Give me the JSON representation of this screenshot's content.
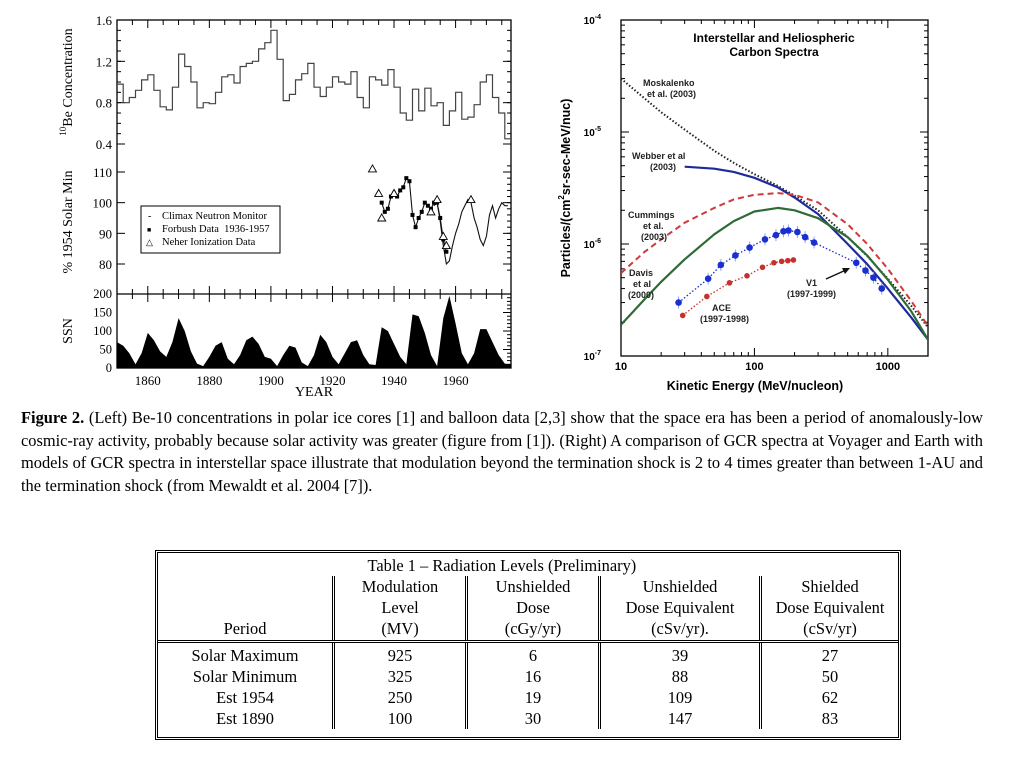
{
  "left_figure": {
    "chart_data": [
      {
        "type": "line",
        "panel": "top",
        "ylabel": "10Be Concentration",
        "ylabel_superscript": "10",
        "ylabel_main": "Be Concentration",
        "ylim": [
          0.3,
          1.6
        ],
        "yticks": [
          "1.6",
          "1.2",
          "0.8",
          "0.4"
        ],
        "x": [
          1850,
          1852,
          1854,
          1856,
          1858,
          1860,
          1862,
          1864,
          1866,
          1868,
          1870,
          1872,
          1874,
          1876,
          1878,
          1880,
          1882,
          1884,
          1886,
          1888,
          1890,
          1892,
          1894,
          1896,
          1898,
          1900,
          1902,
          1904,
          1906,
          1908,
          1910,
          1912,
          1914,
          1916,
          1918,
          1920,
          1922,
          1924,
          1926,
          1928,
          1930,
          1932,
          1934,
          1936,
          1938,
          1940,
          1942,
          1944,
          1946,
          1948,
          1950,
          1952,
          1954,
          1956,
          1958,
          1960,
          1962,
          1964,
          1966,
          1968,
          1970,
          1972,
          1974,
          1976
        ],
        "values": [
          0.98,
          0.8,
          0.85,
          0.92,
          1.02,
          1.07,
          0.92,
          0.76,
          0.73,
          0.95,
          1.27,
          1.15,
          1.0,
          0.75,
          0.8,
          0.79,
          0.9,
          1.05,
          1.07,
          0.99,
          1.15,
          1.18,
          1.2,
          1.32,
          1.38,
          1.5,
          1.22,
          0.82,
          0.88,
          1.02,
          1.08,
          1.18,
          0.95,
          0.86,
          0.95,
          1.05,
          1.0,
          0.98,
          1.1,
          0.85,
          0.75,
          1.05,
          1.02,
          0.97,
          1.12,
          0.95,
          0.7,
          0.63,
          0.93,
          0.72,
          0.94,
          0.77,
          0.8,
          0.58,
          0.72,
          0.9,
          0.64,
          0.66,
          0.78,
          1.0,
          1.07,
          0.85,
          0.7,
          0.45
        ]
      },
      {
        "type": "scatter",
        "panel": "middle",
        "ylabel": "% 1954 Solar Min",
        "ylim": [
          75,
          112
        ],
        "yticks": [
          "110",
          "100",
          "90",
          "80"
        ],
        "legend_position": "left",
        "legend": [
          {
            "symbol": "-",
            "label": "Climax Neutron Monitor"
          },
          {
            "symbol": "■",
            "label": "Forbush Data  1936-1957"
          },
          {
            "symbol": "△",
            "label": "Neher Ionization Data"
          }
        ],
        "series": [
          {
            "name": "Forbush Data 1936-1957",
            "x": [
              1936,
              1937,
              1938,
              1939,
              1940,
              1941,
              1942,
              1943,
              1944,
              1945,
              1946,
              1947,
              1948,
              1949,
              1950,
              1951,
              1952,
              1953,
              1954,
              1955,
              1956,
              1957
            ],
            "values": [
              100,
              97,
              98,
              102,
              103,
              102,
              104,
              105,
              108,
              107,
              96,
              92,
              95,
              97,
              100,
              99,
              98,
              100,
              100,
              95,
              88,
              84
            ]
          },
          {
            "name": "Climax Neutron Monitor",
            "x": [
              1953,
              1954,
              1955,
              1956,
              1957,
              1958,
              1959,
              1960,
              1961,
              1962,
              1963,
              1964,
              1965,
              1966,
              1967,
              1968,
              1969,
              1970,
              1971,
              1972,
              1973,
              1974,
              1975,
              1976,
              1977
            ],
            "values": [
              99,
              100,
              94,
              86,
              80,
              81,
              86,
              90,
              93,
              97,
              99,
              101,
              100,
              95,
              92,
              88,
              86,
              89,
              96,
              99,
              95,
              98,
              100,
              99,
              99
            ]
          },
          {
            "name": "Neher Ionization Data",
            "x": [
              1933,
              1935,
              1936,
              1940,
              1952,
              1954,
              1956,
              1957,
              1965
            ],
            "values": [
              111,
              103,
              95,
              103,
              97,
              101,
              89,
              86,
              101
            ]
          }
        ]
      },
      {
        "type": "area",
        "panel": "bottom",
        "ylabel": "SSN",
        "xlabel": "YEAR",
        "ylim": [
          0,
          200
        ],
        "xlim": [
          1850,
          1978
        ],
        "yticks": [
          "200",
          "150",
          "100",
          "50",
          "0"
        ],
        "xticks": [
          "1860",
          "1880",
          "1900",
          "1920",
          "1940",
          "1960"
        ],
        "x": [
          1850,
          1852,
          1854,
          1856,
          1858,
          1860,
          1862,
          1864,
          1866,
          1868,
          1870,
          1872,
          1874,
          1876,
          1878,
          1880,
          1882,
          1884,
          1886,
          1888,
          1890,
          1892,
          1894,
          1896,
          1898,
          1900,
          1902,
          1904,
          1906,
          1908,
          1910,
          1912,
          1914,
          1916,
          1918,
          1920,
          1922,
          1924,
          1926,
          1928,
          1930,
          1932,
          1934,
          1936,
          1938,
          1940,
          1942,
          1944,
          1946,
          1948,
          1950,
          1952,
          1954,
          1956,
          1958,
          1960,
          1962,
          1964,
          1966,
          1968,
          1970,
          1972,
          1974,
          1976,
          1978
        ],
        "values": [
          70,
          60,
          40,
          10,
          40,
          95,
          75,
          45,
          30,
          70,
          135,
          100,
          45,
          12,
          5,
          30,
          60,
          70,
          25,
          10,
          35,
          75,
          85,
          65,
          30,
          25,
          5,
          35,
          60,
          55,
          15,
          5,
          35,
          90,
          70,
          30,
          10,
          40,
          70,
          75,
          35,
          10,
          8,
          110,
          100,
          65,
          30,
          10,
          145,
          140,
          95,
          35,
          5,
          135,
          195,
          120,
          40,
          10,
          40,
          105,
          105,
          70,
          35,
          12,
          10
        ]
      }
    ]
  },
  "right_figure": {
    "chart_data": {
      "type": "line",
      "title": "Interstellar and Heliospheric Carbon Spectra",
      "title_lines": [
        "Interstellar and Heliospheric",
        "Carbon Spectra"
      ],
      "xlabel": "Kinetic Energy (MeV/nucleon)",
      "ylabel": "Particles/(cm²sr-sec-MeV/nuc)",
      "ylabel_parts": [
        "Particles/(cm",
        "2",
        "sr-sec-MeV/nuc)"
      ],
      "xscale": "log",
      "yscale": "log",
      "xlim": [
        10,
        2000
      ],
      "ylim": [
        1e-07,
        0.0001
      ],
      "xticks": [
        "10",
        "100",
        "1000"
      ],
      "yticks": [
        {
          "mant": "10",
          "exp": "-4"
        },
        {
          "mant": "10",
          "exp": "-5"
        },
        {
          "mant": "10",
          "exp": "-6"
        },
        {
          "mant": "10",
          "exp": "-7"
        }
      ],
      "series": [
        {
          "name": "Moskalenko et al. (2003)",
          "label_lines": [
            "Moskalenko",
            "et al. (2003)"
          ],
          "style": "dotted",
          "color": "#222222",
          "x": [
            10,
            15,
            20,
            30,
            50,
            70,
            100,
            150,
            200,
            300,
            500,
            700,
            1000,
            1500,
            2000
          ],
          "y": [
            3e-05,
            2e-05,
            1.5e-05,
            1.05e-05,
            6.8e-06,
            5.3e-06,
            4.2e-06,
            3.3e-06,
            2.7e-06,
            2e-06,
            1.15e-06,
            7.8e-07,
            4.9e-07,
            2.8e-07,
            1.8e-07
          ]
        },
        {
          "name": "Webber et al (2003)",
          "label_lines": [
            "Webber et al",
            "(2003)"
          ],
          "style": "solid",
          "color": "#1f2a9c",
          "x": [
            30,
            50,
            70,
            100,
            150,
            200,
            300,
            500,
            700,
            1000,
            1500,
            2000
          ],
          "y": [
            4.9e-06,
            4.7e-06,
            4.4e-06,
            3.9e-06,
            3.2e-06,
            2.6e-06,
            1.85e-06,
            1e-06,
            6.6e-07,
            4e-07,
            2.2e-07,
            1.4e-07
          ]
        },
        {
          "name": "Cummings et al. (2003)",
          "label_lines": [
            "Cummings",
            "et al.",
            "(2003)"
          ],
          "style": "dashed",
          "color": "#d0393b",
          "x": [
            10,
            15,
            20,
            30,
            50,
            70,
            100,
            150,
            200,
            300,
            500,
            700,
            1000,
            1500,
            2000
          ],
          "y": [
            5.5e-07,
            8.5e-07,
            1.1e-06,
            1.55e-06,
            2.1e-06,
            2.5e-06,
            2.75e-06,
            2.85e-06,
            2.75e-06,
            2.35e-06,
            1.5e-06,
            1e-06,
            6e-07,
            3.1e-07,
            1.85e-07
          ]
        },
        {
          "name": "Davis et al (2000)",
          "label_lines": [
            "Davis",
            "et al",
            "(2000)"
          ],
          "style": "solid",
          "color": "#2e6b36",
          "x": [
            10,
            15,
            20,
            30,
            50,
            70,
            100,
            150,
            200,
            300,
            500,
            700,
            1000,
            1500,
            2000
          ],
          "y": [
            1.9e-07,
            3.2e-07,
            4.6e-07,
            7.3e-07,
            1.22e-06,
            1.6e-06,
            1.95e-06,
            2.1e-06,
            2e-06,
            1.7e-06,
            1.15e-06,
            7.9e-07,
            4.8e-07,
            2.5e-07,
            1.4e-07
          ]
        },
        {
          "name": "V1 (1997-1999)",
          "label_lines": [
            "V1",
            "(1997-1999)"
          ],
          "style": "dotted-markers",
          "color": "#1a2fd0",
          "x": [
            27,
            45,
            56,
            72,
            92,
            120,
            145,
            165,
            180,
            210,
            240,
            280,
            580,
            680,
            780,
            900
          ],
          "y": [
            3e-07,
            4.9e-07,
            6.5e-07,
            7.9e-07,
            9.3e-07,
            1.1e-06,
            1.2e-06,
            1.3e-06,
            1.32e-06,
            1.28e-06,
            1.15e-06,
            1.03e-06,
            6.8e-07,
            5.8e-07,
            5e-07,
            4e-07
          ]
        },
        {
          "name": "ACE (1997-1998)",
          "label_lines": [
            "ACE",
            "(1997-1998)"
          ],
          "style": "dotted-markers",
          "color": "#c8302d",
          "x": [
            29,
            44,
            65,
            88,
            115,
            140,
            160,
            178,
            196
          ],
          "y": [
            2.3e-07,
            3.4e-07,
            4.5e-07,
            5.2e-07,
            6.2e-07,
            6.8e-07,
            7e-07,
            7.1e-07,
            7.2e-07
          ]
        }
      ]
    }
  },
  "caption": {
    "label": "Figure 2.",
    "text": " (Left) Be-10 concentrations in polar ice cores [1] and balloon data [2,3] show that the space era has been a period of anomalously-low cosmic-ray activity, probably because solar activity was greater (figure from [1]).  (Right) A comparison of GCR spectra at Voyager and Earth with models of GCR spectra in interstellar space illustrate that modulation beyond the termination shock is 2 to 4 times greater than between 1-AU and the termination shock (from Mewaldt et al. 2004 [7])."
  },
  "table": {
    "title": "Table 1 – Radiation Levels (Preliminary)",
    "headers": [
      [
        "",
        "",
        "Period"
      ],
      [
        "Modulation",
        "Level",
        "(MV)"
      ],
      [
        "Unshielded",
        "Dose",
        "(cGy/yr)"
      ],
      [
        "Unshielded",
        "Dose Equivalent",
        "(cSv/yr)."
      ],
      [
        "Shielded",
        "Dose Equivalent",
        "(cSv/yr)"
      ]
    ],
    "rows": [
      [
        "Solar Maximum",
        "925",
        "6",
        "39",
        "27"
      ],
      [
        "Solar Minimum",
        "325",
        "16",
        "88",
        "50"
      ],
      [
        "Est 1954",
        "250",
        "19",
        "109",
        "62"
      ],
      [
        "Est 1890",
        "100",
        "30",
        "147",
        "83"
      ]
    ]
  }
}
